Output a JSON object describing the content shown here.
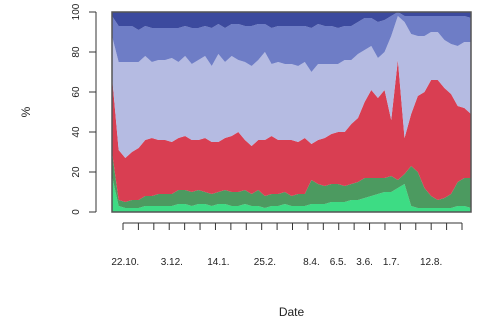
{
  "chart_data": {
    "type": "area",
    "stacked": true,
    "normalized_percent": true,
    "title": "",
    "xlabel": "Date",
    "ylabel": "%",
    "ylim": [
      0,
      100
    ],
    "y_ticks": [
      0,
      20,
      40,
      60,
      80,
      100
    ],
    "x_tick_labels": [
      "22.10.",
      "3.12.",
      "14.1.",
      "25.2.",
      "8.4.",
      "6.5.",
      "3.6.",
      "1.7.",
      "12.8."
    ],
    "x_tick_positions": [
      2,
      9,
      16,
      23,
      30,
      34,
      38,
      42,
      48
    ],
    "x_extra_ticks": 23,
    "grid": false,
    "legend": "none",
    "x": [
      0,
      1,
      2,
      3,
      4,
      5,
      6,
      7,
      8,
      9,
      10,
      11,
      12,
      13,
      14,
      15,
      16,
      17,
      18,
      19,
      20,
      21,
      22,
      23,
      24,
      25,
      26,
      27,
      28,
      29,
      30,
      31,
      32,
      33,
      34,
      35,
      36,
      37,
      38,
      39,
      40,
      41,
      42,
      43,
      44,
      45,
      46,
      47,
      48,
      49,
      50,
      51,
      52,
      53,
      54
    ],
    "series": [
      {
        "color": "#3ddc84",
        "values": [
          18,
          3,
          2,
          2,
          2,
          3,
          3,
          3,
          3,
          3,
          4,
          4,
          3,
          4,
          4,
          3,
          4,
          4,
          3,
          3,
          4,
          3,
          3,
          2,
          3,
          3,
          4,
          3,
          3,
          3,
          4,
          4,
          4,
          5,
          5,
          5,
          6,
          6,
          7,
          8,
          9,
          10,
          10,
          12,
          14,
          3,
          2,
          2,
          2,
          2,
          2,
          2,
          3,
          3,
          2
        ]
      },
      {
        "color": "#4c9a60",
        "values": [
          12,
          3,
          3,
          4,
          4,
          5,
          5,
          6,
          6,
          6,
          7,
          7,
          7,
          7,
          6,
          6,
          6,
          7,
          7,
          7,
          7,
          6,
          8,
          6,
          6,
          6,
          6,
          5,
          6,
          6,
          12,
          10,
          9,
          9,
          9,
          8,
          8,
          9,
          10,
          9,
          8,
          7,
          8,
          4,
          5,
          20,
          18,
          10,
          6,
          4,
          5,
          7,
          12,
          14,
          15
        ]
      },
      {
        "color": "#d93e52",
        "values": [
          38,
          25,
          22,
          24,
          26,
          28,
          29,
          27,
          27,
          26,
          26,
          27,
          26,
          25,
          27,
          26,
          25,
          26,
          28,
          30,
          25,
          24,
          25,
          28,
          29,
          27,
          26,
          28,
          26,
          28,
          18,
          22,
          24,
          25,
          26,
          27,
          30,
          32,
          38,
          44,
          40,
          44,
          28,
          60,
          18,
          26,
          38,
          48,
          58,
          60,
          55,
          50,
          38,
          35,
          32
        ]
      },
      {
        "color": "#b5bbe2",
        "values": [
          20,
          44,
          48,
          45,
          43,
          42,
          38,
          40,
          40,
          42,
          38,
          40,
          38,
          40,
          41,
          38,
          44,
          38,
          40,
          36,
          39,
          40,
          40,
          44,
          36,
          39,
          38,
          38,
          38,
          38,
          36,
          38,
          37,
          35,
          34,
          36,
          32,
          32,
          26,
          22,
          20,
          19,
          42,
          22,
          58,
          40,
          30,
          28,
          24,
          24,
          24,
          25,
          30,
          33,
          36
        ]
      },
      {
        "color": "#6e7dc6",
        "values": [
          10,
          18,
          18,
          18,
          16,
          15,
          17,
          16,
          16,
          15,
          17,
          15,
          18,
          16,
          15,
          19,
          15,
          17,
          16,
          18,
          18,
          20,
          18,
          14,
          18,
          18,
          19,
          19,
          20,
          18,
          22,
          20,
          19,
          19,
          18,
          17,
          17,
          16,
          16,
          14,
          18,
          16,
          10,
          2,
          3,
          9,
          10,
          10,
          8,
          8,
          12,
          14,
          15,
          13,
          12
        ]
      },
      {
        "color": "#3c4a9e",
        "values": [
          2,
          7,
          7,
          7,
          9,
          7,
          8,
          8,
          8,
          8,
          8,
          7,
          8,
          8,
          7,
          8,
          6,
          8,
          6,
          6,
          7,
          7,
          6,
          6,
          8,
          7,
          7,
          7,
          7,
          7,
          8,
          6,
          7,
          7,
          8,
          7,
          7,
          5,
          3,
          3,
          5,
          4,
          2,
          0,
          2,
          2,
          2,
          2,
          2,
          2,
          2,
          2,
          2,
          2,
          3
        ]
      }
    ]
  }
}
